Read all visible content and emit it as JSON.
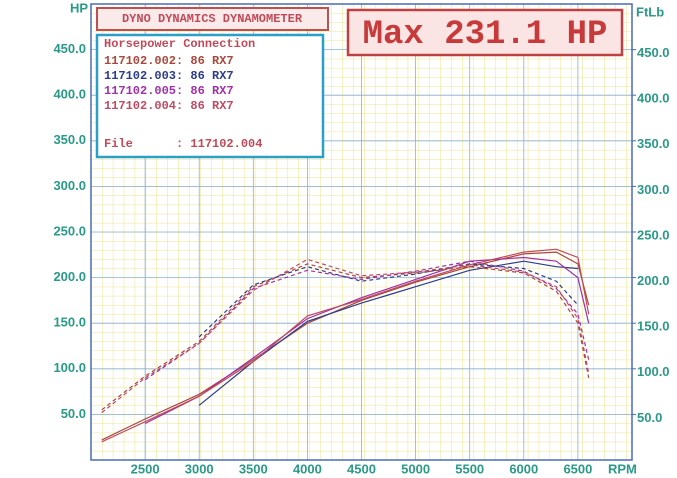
{
  "chart_data": {
    "type": "line",
    "header": "DYNO DYNAMICS DYNAMOMETER",
    "legend_title": "Horsepower Connection",
    "file": "File      : 117102.004",
    "max_label": "Max 231.1 HP",
    "ylabel": "HP",
    "y2label": "FtLb",
    "xlabel": "RPM",
    "x": [
      2100,
      2500,
      3000,
      3500,
      4000,
      4500,
      5000,
      5500,
      6000,
      6300,
      6500,
      6600
    ],
    "xlim": [
      2000,
      7000
    ],
    "xticks": [
      2500,
      3000,
      3500,
      4000,
      4500,
      5000,
      5500,
      6000,
      6500
    ],
    "ylim": [
      0,
      500
    ],
    "yticks": [
      {
        "value": 50,
        "label": "50.0"
      },
      {
        "value": 100,
        "label": "100.0"
      },
      {
        "value": 150,
        "label": "150.0"
      },
      {
        "value": 200,
        "label": "200.0"
      },
      {
        "value": 250,
        "label": "250.0"
      },
      {
        "value": 300,
        "label": "300.0"
      },
      {
        "value": 350,
        "label": "350.0"
      },
      {
        "value": 400,
        "label": "400.0"
      },
      {
        "value": 450,
        "label": "450.0"
      }
    ],
    "y2lim": [
      0,
      500
    ],
    "y2ticks": [
      {
        "value": 50,
        "label": "50.0"
      },
      {
        "value": 100,
        "label": "100.0"
      },
      {
        "value": 150,
        "label": "150.0"
      },
      {
        "value": 200,
        "label": "200.0"
      },
      {
        "value": 250,
        "label": "250.0"
      },
      {
        "value": 300,
        "label": "300.0"
      },
      {
        "value": 350,
        "label": "350.0"
      },
      {
        "value": 400,
        "label": "400.0"
      },
      {
        "value": 450,
        "label": "450.0"
      }
    ],
    "grid": true,
    "series": [
      {
        "name": "117102.002: 86 RX7",
        "color": "#a8483a",
        "values": [
          22,
          45,
          72,
          110,
          150,
          175,
          195,
          212,
          226,
          228,
          215,
          170
        ]
      },
      {
        "name": "117102.003: 86 RX7",
        "color": "#2c3c8c",
        "values": [
          null,
          null,
          60,
          108,
          152,
          172,
          190,
          208,
          218,
          212,
          210,
          null
        ]
      },
      {
        "name": "117102.005: 86 RX7",
        "color": "#a030a8",
        "values": [
          null,
          40,
          70,
          112,
          155,
          178,
          198,
          218,
          222,
          218,
          200,
          150
        ]
      },
      {
        "name": "117102.004: 86 RX7",
        "color": "#c04a62",
        "values": [
          20,
          42,
          70,
          108,
          158,
          176,
          196,
          214,
          228,
          231.1,
          222,
          160
        ]
      },
      {
        "color": "#a8483a",
        "axis": "y2",
        "dashed": true,
        "values": [
          55,
          92,
          130,
          190,
          215,
          200,
          205,
          212,
          205,
          185,
          150,
          90
        ]
      },
      {
        "color": "#2c3c8c",
        "axis": "y2",
        "dashed": true,
        "values": [
          null,
          null,
          135,
          192,
          212,
          196,
          204,
          215,
          210,
          196,
          170,
          null
        ]
      },
      {
        "color": "#a030a8",
        "axis": "y2",
        "dashed": true,
        "values": [
          null,
          88,
          128,
          188,
          208,
          198,
          207,
          218,
          207,
          188,
          160,
          110
        ]
      },
      {
        "color": "#c04a62",
        "axis": "y2",
        "dashed": true,
        "values": [
          52,
          90,
          128,
          186,
          220,
          202,
          206,
          214,
          206,
          190,
          155,
          95
        ]
      }
    ]
  }
}
